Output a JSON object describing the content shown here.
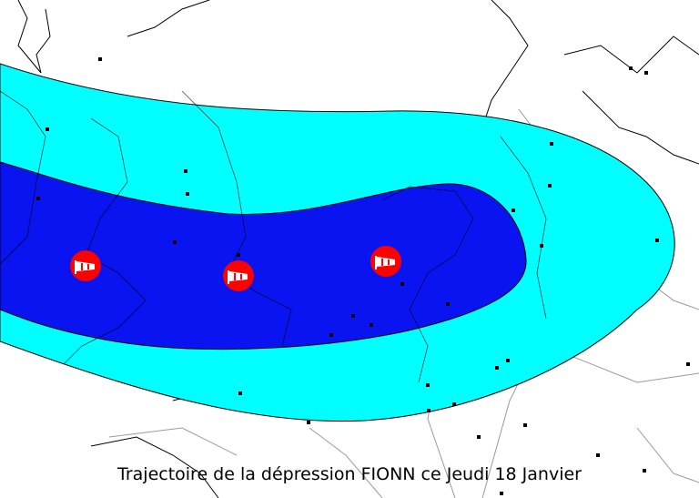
{
  "map": {
    "caption": "Trajectoire de la dépression FIONN ce Jeudi 18 Janvier",
    "colors": {
      "outer_zone": "#00ffff",
      "inner_zone": "#0a14f0",
      "storm_marker": "#ff0000",
      "coastline": "#000000",
      "borders": "#888888"
    },
    "markers": [
      {
        "icon": "windsock-icon"
      },
      {
        "icon": "windsock-icon"
      },
      {
        "icon": "windsock-icon"
      }
    ]
  }
}
